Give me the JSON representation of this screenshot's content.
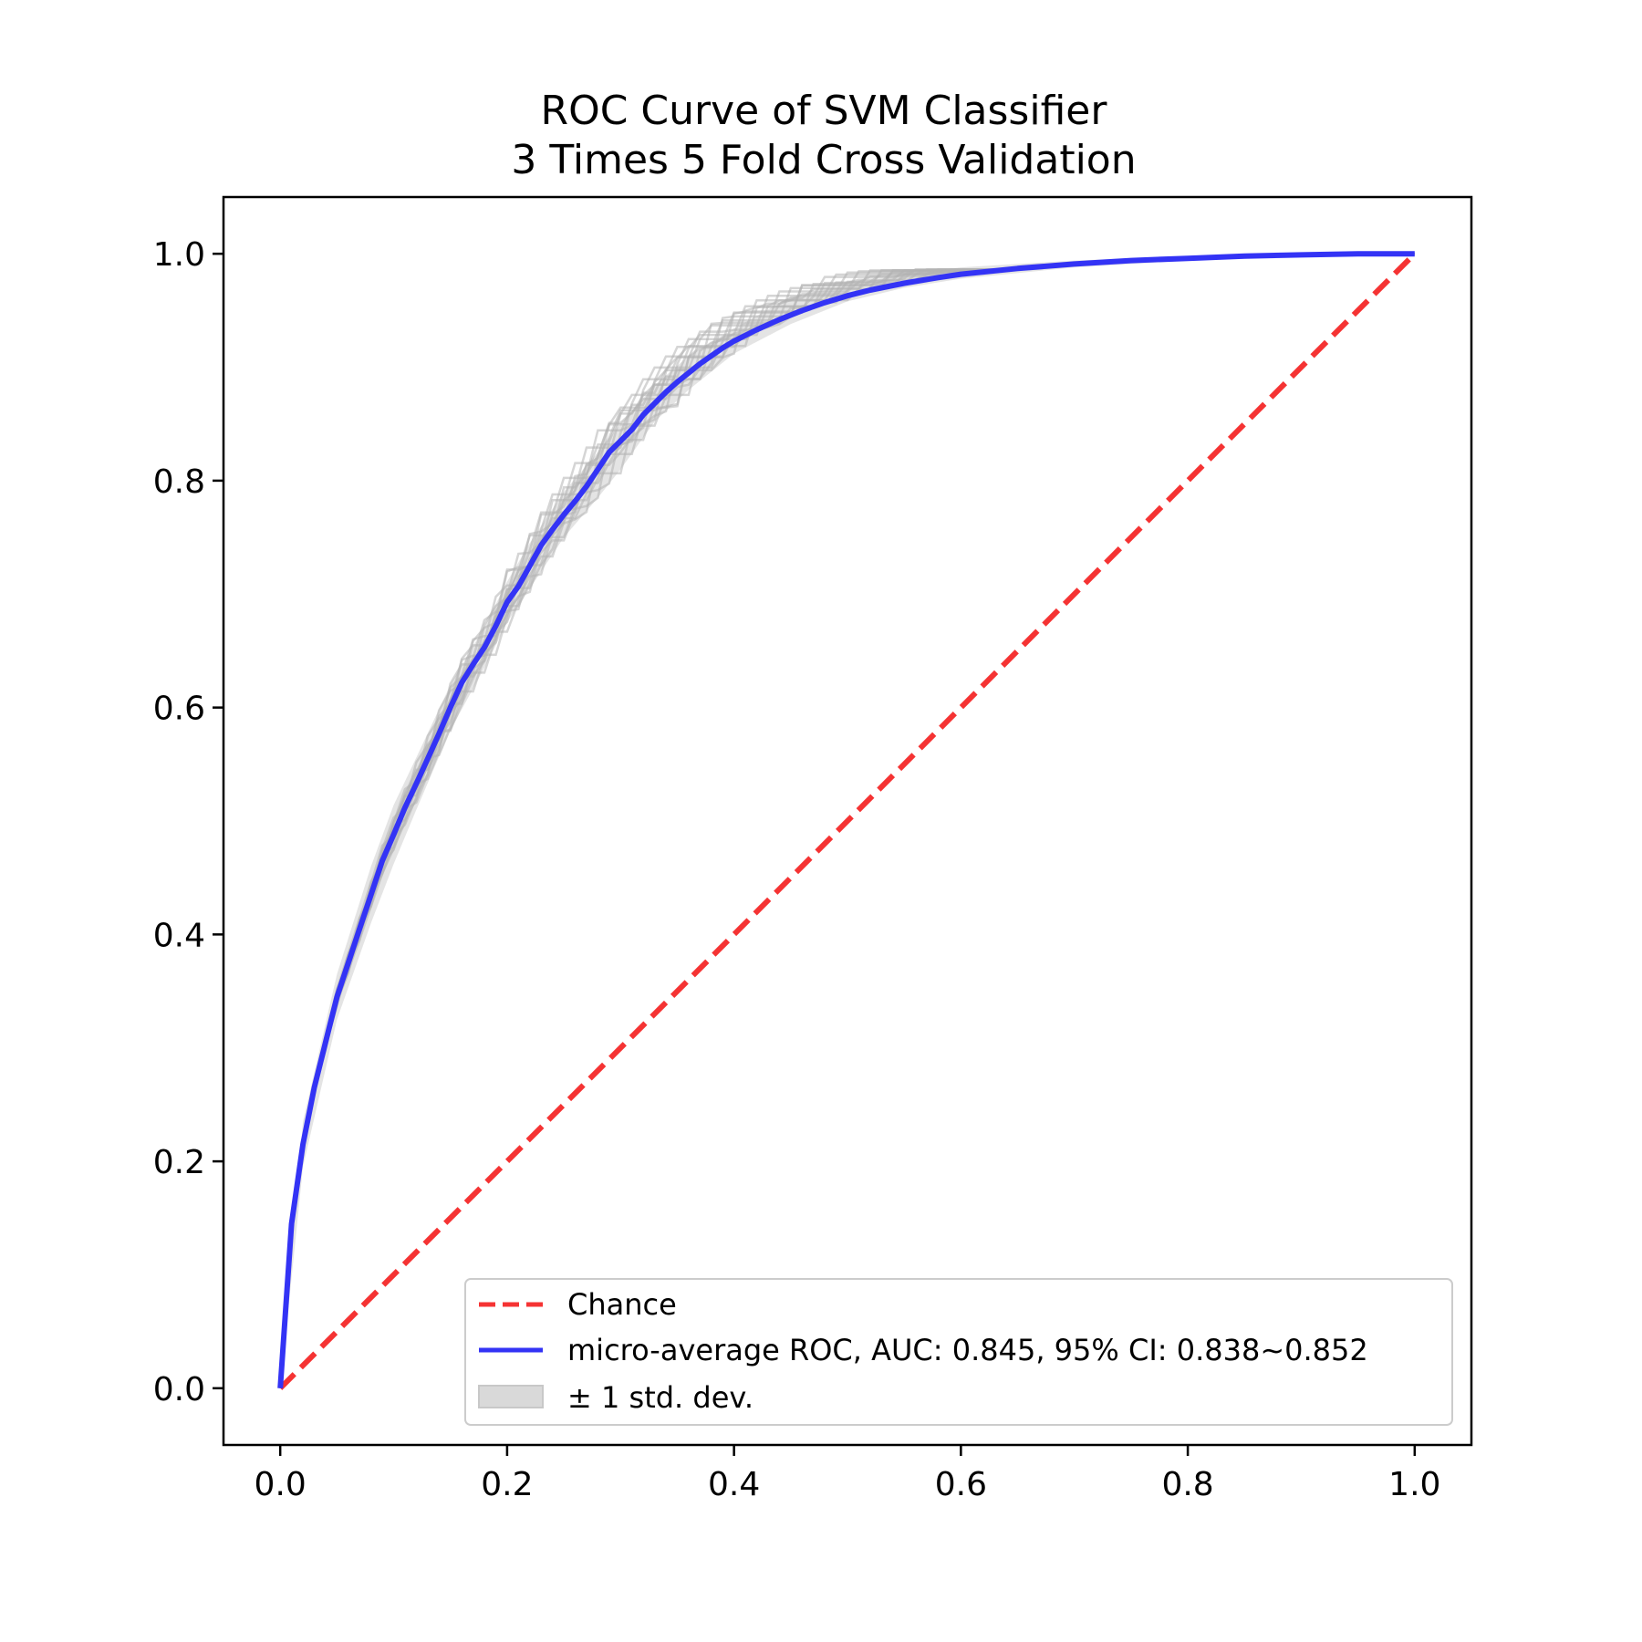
{
  "chart_data": {
    "type": "line",
    "title": "ROC Curve of SVM Classifier",
    "subtitle": "3 Times 5 Fold Cross Validation",
    "xlabel": "",
    "ylabel": "",
    "xlim": [
      -0.05,
      1.05
    ],
    "ylim": [
      -0.05,
      1.05
    ],
    "x_ticks": [
      "0.0",
      "0.2",
      "0.4",
      "0.6",
      "0.8",
      "1.0"
    ],
    "y_ticks": [
      "0.0",
      "0.2",
      "0.4",
      "0.6",
      "0.8",
      "1.0"
    ],
    "grid": false,
    "legend_position": "lower-right",
    "colors": {
      "chance": "#f53333",
      "mean": "#3333f5",
      "fold": "#b3b3b3",
      "band": "#d9d9d9"
    },
    "series": [
      {
        "name": "Chance",
        "style": "dashed",
        "x": [
          0,
          1
        ],
        "y": [
          0,
          1
        ]
      },
      {
        "name": "micro-average ROC, AUC: 0.845, 95% CI: 0.838~0.852",
        "style": "solid",
        "x": [
          0,
          0.01,
          0.02,
          0.03,
          0.04,
          0.05,
          0.06,
          0.07,
          0.08,
          0.09,
          0.1,
          0.11,
          0.12,
          0.13,
          0.14,
          0.15,
          0.16,
          0.17,
          0.18,
          0.19,
          0.2,
          0.21,
          0.22,
          0.23,
          0.24,
          0.25,
          0.26,
          0.27,
          0.28,
          0.29,
          0.3,
          0.31,
          0.32,
          0.33,
          0.34,
          0.35,
          0.36,
          0.37,
          0.38,
          0.39,
          0.4,
          0.42,
          0.44,
          0.46,
          0.48,
          0.5,
          0.52,
          0.55,
          0.58,
          0.6,
          0.65,
          0.7,
          0.75,
          0.8,
          0.85,
          0.9,
          0.95,
          1.0
        ],
        "y": [
          0,
          0.145,
          0.215,
          0.265,
          0.305,
          0.345,
          0.375,
          0.405,
          0.435,
          0.465,
          0.488,
          0.512,
          0.533,
          0.555,
          0.577,
          0.6,
          0.622,
          0.638,
          0.653,
          0.672,
          0.693,
          0.707,
          0.725,
          0.743,
          0.757,
          0.77,
          0.782,
          0.795,
          0.81,
          0.825,
          0.835,
          0.845,
          0.858,
          0.868,
          0.878,
          0.887,
          0.895,
          0.903,
          0.91,
          0.917,
          0.923,
          0.933,
          0.942,
          0.95,
          0.957,
          0.963,
          0.968,
          0.974,
          0.979,
          0.982,
          0.987,
          0.991,
          0.994,
          0.996,
          0.998,
          0.999,
          1.0,
          1.0
        ]
      },
      {
        "name": "± 1 std. dev.",
        "style": "band",
        "x": [
          0,
          0.02,
          0.05,
          0.08,
          0.1,
          0.12,
          0.15,
          0.18,
          0.2,
          0.22,
          0.25,
          0.28,
          0.3,
          0.33,
          0.36,
          0.4,
          0.45,
          0.5,
          0.55,
          0.6,
          0.7,
          0.8,
          0.9,
          1.0
        ],
        "lower": [
          0,
          0.195,
          0.325,
          0.41,
          0.462,
          0.51,
          0.58,
          0.635,
          0.675,
          0.705,
          0.75,
          0.785,
          0.81,
          0.852,
          0.88,
          0.912,
          0.938,
          0.958,
          0.97,
          0.978,
          0.988,
          0.994,
          0.998,
          1.0
        ],
        "upper": [
          0,
          0.235,
          0.365,
          0.46,
          0.514,
          0.556,
          0.62,
          0.671,
          0.711,
          0.745,
          0.79,
          0.825,
          0.85,
          0.884,
          0.91,
          0.934,
          0.962,
          0.972,
          0.982,
          0.988,
          0.994,
          0.998,
          1.0,
          1.0
        ]
      }
    ]
  }
}
